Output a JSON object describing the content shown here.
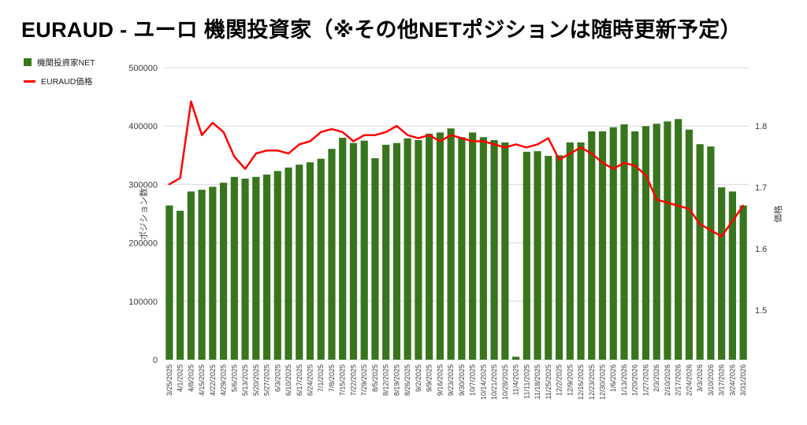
{
  "title": "EURAUD - ユーロ 機関投資家（※その他NETポジションは随時更新予定）",
  "legend": [
    {
      "label": "機関投資家NET",
      "color": "#38761d",
      "marker": "square"
    },
    {
      "label": "EURAUD価格",
      "color": "#ff0000",
      "marker": "line"
    }
  ],
  "chart_data": {
    "type": "bar",
    "subtype": "bar+line combo, dual axis",
    "title": "EURAUD - ユーロ 機関投資家（※その他NETポジションは随時更新予定）",
    "grid": true,
    "grid_color": "#d9d9d9",
    "tick_color": "#3b3b3b",
    "legend_position": "top-left",
    "categories": [
      "3/25/2025",
      "4/1/2025",
      "4/8/2025",
      "4/15/2025",
      "4/22/2025",
      "4/29/2025",
      "5/6/2025",
      "5/13/2025",
      "5/20/2025",
      "5/27/2025",
      "6/3/2025",
      "6/10/2025",
      "6/17/2025",
      "6/24/2025",
      "7/1/2025",
      "7/8/2025",
      "7/15/2025",
      "7/22/2025",
      "7/29/2025",
      "8/5/2025",
      "8/12/2025",
      "8/19/2025",
      "8/26/2025",
      "9/2/2025",
      "9/9/2025",
      "9/16/2025",
      "9/23/2025",
      "9/30/2025",
      "10/7/2025",
      "10/14/2025",
      "10/21/2025",
      "10/28/2025",
      "11/4/2025",
      "11/11/2025",
      "11/18/2025",
      "11/25/2025",
      "12/2/2025",
      "12/9/2025",
      "12/16/2025",
      "12/23/2025",
      "12/30/2025",
      "1/6/2026",
      "1/13/2026",
      "1/20/2026",
      "1/27/2026",
      "2/3/2026",
      "2/10/2026",
      "2/17/2026",
      "2/24/2026",
      "3/3/2026",
      "3/10/2026",
      "3/17/2026",
      "3/24/2026",
      "3/31/2026"
    ],
    "left_axis": {
      "title": "ポジション数",
      "min": 0,
      "max": 500000,
      "ticks": [
        0,
        100000,
        200000,
        300000,
        400000,
        500000
      ]
    },
    "right_axis": {
      "title": "価格",
      "min": 1.419,
      "max": 1.895,
      "ticks": [
        1.5,
        1.6,
        1.7,
        1.8
      ]
    },
    "series": [
      {
        "name": "機関投資家NET",
        "type": "bar",
        "axis": "left",
        "color": "#38761d",
        "values": [
          264000,
          255000,
          288000,
          291000,
          296000,
          303000,
          313000,
          310000,
          313000,
          317000,
          323000,
          329000,
          334000,
          338000,
          344000,
          361000,
          380000,
          371000,
          375000,
          345000,
          368000,
          371000,
          379000,
          376000,
          387000,
          389000,
          396000,
          381000,
          389000,
          381000,
          376000,
          372000,
          5000,
          356000,
          357000,
          349000,
          350000,
          372000,
          372000,
          391000,
          391000,
          398000,
          403000,
          391000,
          400000,
          404000,
          408000,
          412000,
          394000,
          369000,
          365000,
          295000,
          288000,
          264000
        ]
      },
      {
        "name": "EURAUD価格",
        "type": "line",
        "axis": "right",
        "color": "#ff0000",
        "values": [
          1.705,
          1.715,
          1.84,
          1.785,
          1.805,
          1.79,
          1.75,
          1.73,
          1.755,
          1.76,
          1.76,
          1.755,
          1.77,
          1.775,
          1.79,
          1.795,
          1.79,
          1.775,
          1.785,
          1.785,
          1.79,
          1.8,
          1.785,
          1.78,
          1.785,
          1.775,
          1.785,
          1.78,
          1.775,
          1.775,
          1.77,
          1.765,
          1.77,
          1.765,
          1.77,
          1.78,
          1.745,
          1.755,
          1.765,
          1.755,
          1.74,
          1.73,
          1.74,
          1.735,
          1.72,
          1.68,
          1.675,
          1.67,
          1.665,
          1.64,
          1.63,
          1.62,
          1.645,
          1.67
        ]
      }
    ]
  }
}
